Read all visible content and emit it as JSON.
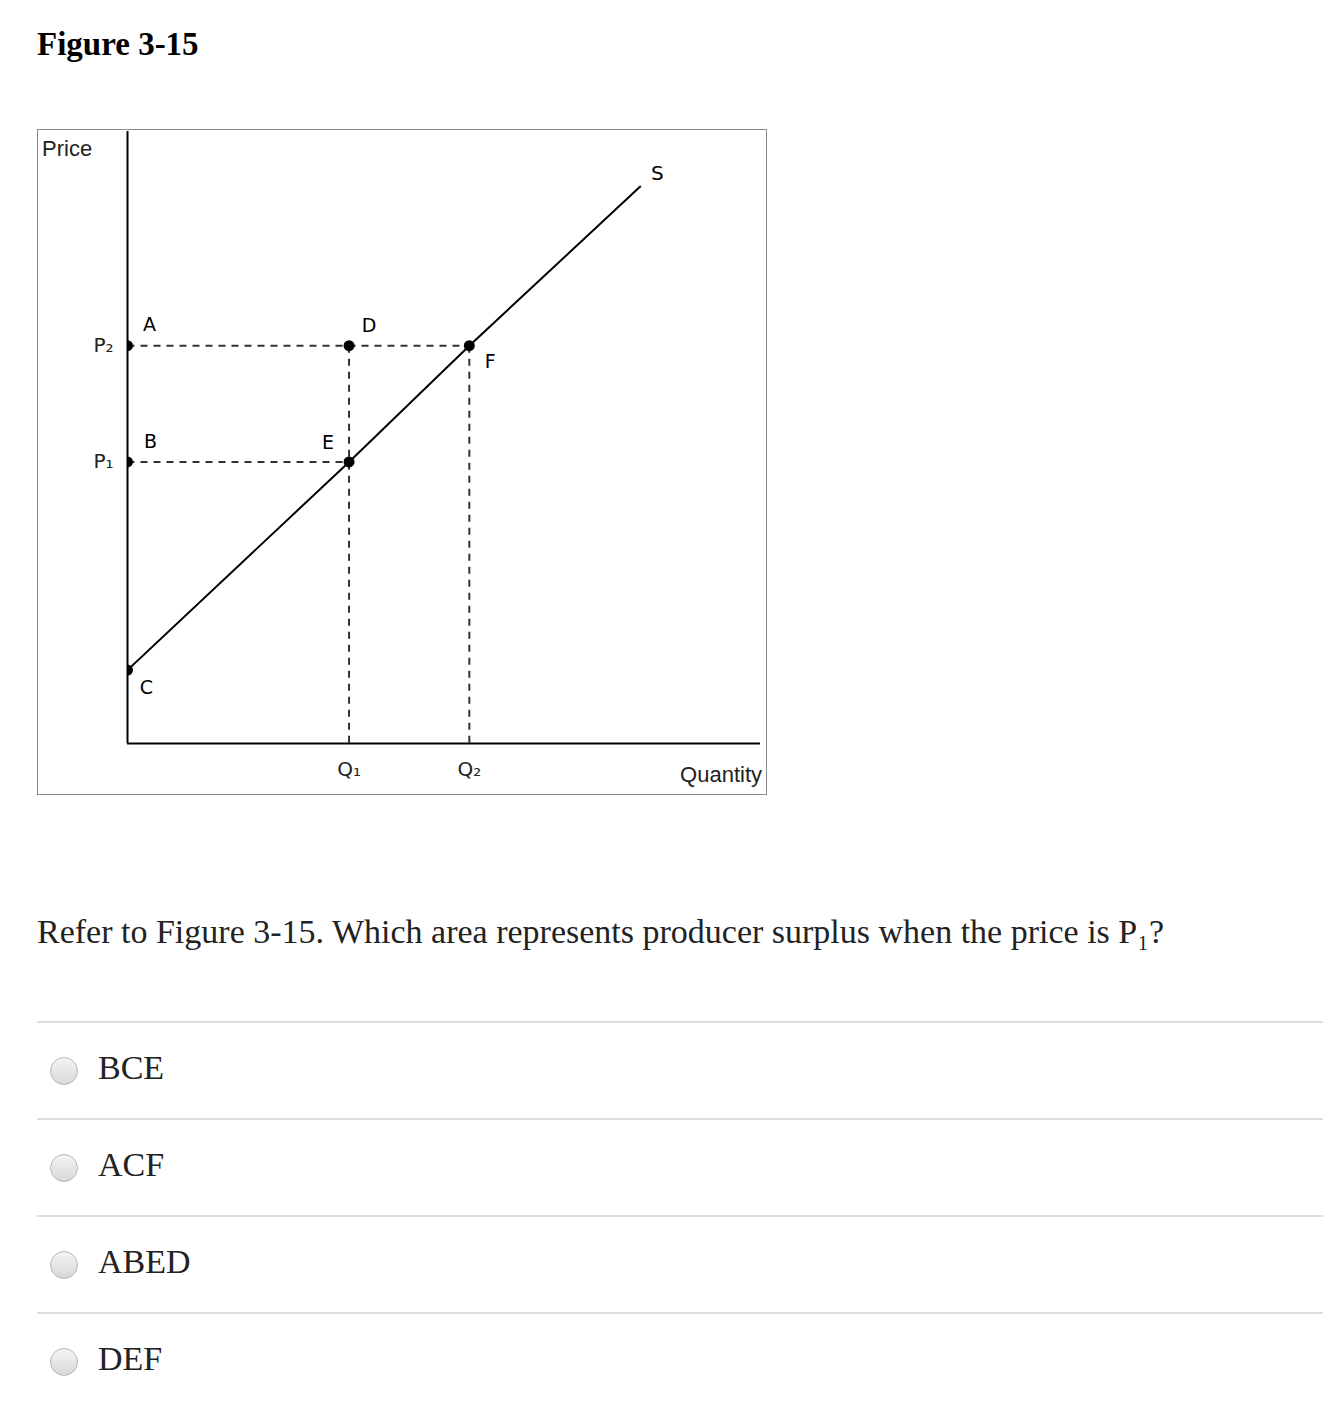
{
  "title": "Figure 3-15",
  "chart_data": {
    "type": "line",
    "xlabel": "Quantity",
    "ylabel": "Price",
    "x": [
      0,
      3.5,
      5.4,
      8.1
    ],
    "series": [
      {
        "name": "S",
        "color": "#000000",
        "values": [
          1.2,
          4.6,
          6.5,
          9.1
        ]
      }
    ],
    "points": [
      {
        "label": "A",
        "x": 0,
        "y": 6.5
      },
      {
        "label": "B",
        "x": 0,
        "y": 4.6
      },
      {
        "label": "C",
        "x": 0,
        "y": 1.2
      },
      {
        "label": "D",
        "x": 3.5,
        "y": 6.5
      },
      {
        "label": "E",
        "x": 3.5,
        "y": 4.6
      },
      {
        "label": "F",
        "x": 5.4,
        "y": 6.5
      }
    ],
    "xlim": [
      0,
      10
    ],
    "ylim": [
      0,
      10
    ],
    "xticks": [
      {
        "value": 3.5,
        "label": "Q₁"
      },
      {
        "value": 5.4,
        "label": "Q₂"
      }
    ],
    "yticks": [
      {
        "value": 4.6,
        "label": "P₁"
      },
      {
        "value": 6.5,
        "label": "P₂"
      }
    ]
  },
  "question": "Refer to Figure 3-15. Which area represents producer surplus when the price is P₁?",
  "options": [
    "BCE",
    "ACF",
    "ABED",
    "DEF"
  ]
}
